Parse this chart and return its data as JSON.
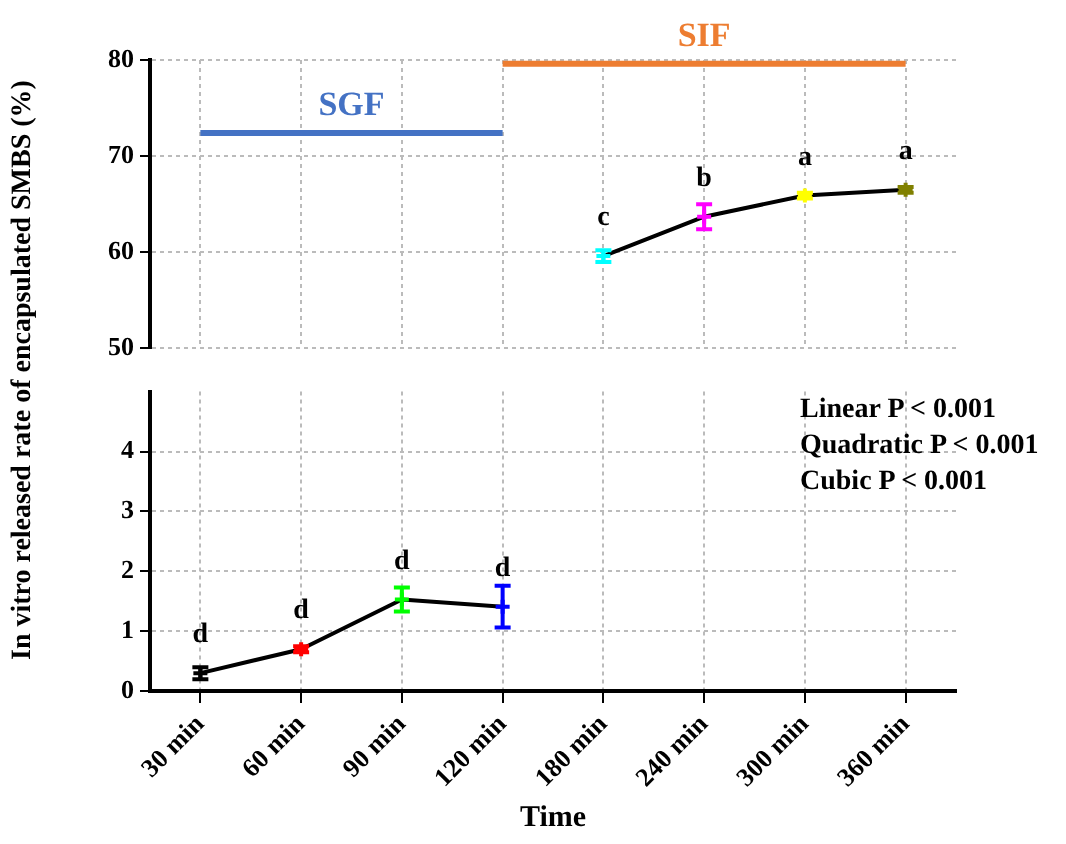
{
  "chart_data": [
    {
      "type": "line",
      "ylabel": "In vitro released rate of encapsulated SMBS (%)",
      "categories": [
        "30 min",
        "60 min",
        "90 min",
        "120 min",
        "180 min",
        "240 min",
        "300 min",
        "360 min"
      ],
      "ylim": [
        50,
        80
      ],
      "yticks": [
        50,
        60,
        70,
        80
      ],
      "tick_labels": "y",
      "grid": true,
      "legend": false,
      "marker": "cross",
      "series": [
        {
          "color": "#000000",
          "colors": [
            "#000000",
            "#ff0000",
            "#00ff00",
            "#0000ff",
            "#00ffff",
            "#ff00ff",
            "#ffff00",
            "#808000"
          ],
          "values": [
            null,
            null,
            null,
            null,
            59.6,
            63.7,
            65.9,
            66.5
          ],
          "errors": [
            null,
            null,
            null,
            null,
            0.6,
            1.3,
            0.3,
            0.3
          ]
        },
        {
          "name": "SGF",
          "color": "#4472c4",
          "marker": "none",
          "values": [
            72.4,
            null,
            null,
            72.4,
            null,
            null,
            null,
            null
          ]
        },
        {
          "name": "SIF",
          "color": "#ed7d31",
          "marker": "none",
          "values": [
            null,
            null,
            null,
            79.6,
            null,
            null,
            null,
            79.6
          ]
        }
      ],
      "annotations": [
        {
          "text": "c",
          "x": "180 min",
          "y": 59.6
        },
        {
          "text": "b",
          "x": "240 min",
          "y": 63.7
        },
        {
          "text": "a",
          "x": "300 min",
          "y": 65.9
        },
        {
          "text": "a",
          "x": "360 min",
          "y": 66.5
        }
      ]
    },
    {
      "type": "line",
      "xlabel": "Time",
      "categories": [
        "30 min",
        "60 min",
        "90 min",
        "120 min",
        "180 min",
        "240 min",
        "300 min",
        "360 min"
      ],
      "ylim": [
        0,
        5
      ],
      "yticks": [
        0,
        1,
        2,
        3,
        4
      ],
      "grid": true,
      "legend": false,
      "marker": "cross",
      "series": [
        {
          "color": "#000000",
          "colors": [
            "#000000",
            "#ff0000",
            "#00ff00",
            "#0000ff",
            "#00ffff",
            "#ff00ff",
            "#ffff00",
            "#808000"
          ],
          "values": [
            0.3,
            0.7,
            1.53,
            1.41,
            null,
            null,
            null,
            null
          ],
          "errors": [
            0.1,
            0.05,
            0.2,
            0.35,
            null,
            null,
            null,
            null
          ]
        }
      ],
      "annotations": [
        {
          "text": "d",
          "x": "30 min",
          "y": 0.3
        },
        {
          "text": "d",
          "x": "60 min",
          "y": 0.7
        },
        {
          "text": "d",
          "x": "90 min",
          "y": 1.53
        },
        {
          "text": "d",
          "x": "120 min",
          "y": 1.41
        },
        "Linear P < 0.001",
        "Quadratic P < 0.001",
        "Cubic P < 0.001"
      ]
    }
  ]
}
